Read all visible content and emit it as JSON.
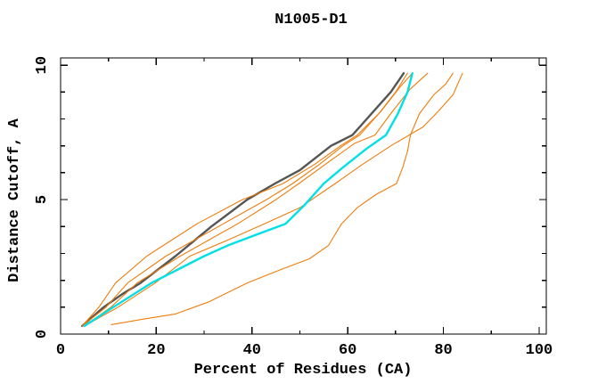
{
  "page": {
    "background": "#ffffff",
    "frame_color": "#000000",
    "text_color": "#000000"
  },
  "chart_data": {
    "type": "line",
    "title": "N1005-D1",
    "xlabel": "Percent of Residues (CA)",
    "ylabel": "Distance Cutoff, A",
    "xlim": [
      0,
      101.5
    ],
    "ylim": [
      0,
      10.27
    ],
    "x_major_ticks": [
      0,
      20,
      40,
      60,
      80,
      100
    ],
    "x_minor_ticks": [
      10,
      30,
      50,
      70,
      90
    ],
    "y_major_ticks": [
      0,
      5,
      10
    ],
    "y_minor_ticks": [
      1,
      2,
      3,
      4,
      6,
      7,
      8,
      9
    ],
    "grid": false,
    "legend": "none",
    "tick_style": "inward-mirrored-all-sides",
    "series": [
      {
        "name": "dark-gray-thick",
        "color": "#555555",
        "width": 2.4,
        "points": [
          [
            4.5,
            0.3
          ],
          [
            9,
            1.0
          ],
          [
            13,
            1.5
          ],
          [
            16.7,
            1.9
          ],
          [
            24,
            2.9
          ],
          [
            31.5,
            4.0
          ],
          [
            39,
            5.0
          ],
          [
            44.8,
            5.6
          ],
          [
            50,
            6.1
          ],
          [
            56.5,
            7.0
          ],
          [
            61,
            7.4
          ],
          [
            64,
            8.0
          ],
          [
            69,
            9.0
          ],
          [
            71.7,
            9.7
          ]
        ]
      },
      {
        "name": "orange-1",
        "color": "#EE7D0C",
        "width": 1.1,
        "points": [
          [
            4.5,
            0.3
          ],
          [
            8,
            1.0
          ],
          [
            11.5,
            1.9
          ],
          [
            18,
            2.9
          ],
          [
            28.5,
            4.1
          ],
          [
            38,
            5.0
          ],
          [
            46.5,
            5.6
          ],
          [
            53,
            6.3
          ],
          [
            58.5,
            7.0
          ],
          [
            62,
            7.4
          ],
          [
            66.5,
            8.2
          ],
          [
            70,
            9.0
          ],
          [
            72.5,
            9.7
          ]
        ]
      },
      {
        "name": "orange-2",
        "color": "#EE7D0C",
        "width": 1.1,
        "points": [
          [
            4.5,
            0.3
          ],
          [
            9.5,
            1.0
          ],
          [
            14,
            1.9
          ],
          [
            22,
            2.9
          ],
          [
            34,
            4.1
          ],
          [
            43,
            5.0
          ],
          [
            48.5,
            5.6
          ],
          [
            54,
            6.3
          ],
          [
            59,
            7.0
          ],
          [
            62.5,
            7.4
          ],
          [
            67,
            8.3
          ],
          [
            71,
            9.2
          ],
          [
            73.5,
            9.7
          ]
        ]
      },
      {
        "name": "orange-3",
        "color": "#EE7D0C",
        "width": 1.1,
        "points": [
          [
            5,
            0.3
          ],
          [
            10.5,
            1.0
          ],
          [
            16,
            1.9
          ],
          [
            25,
            2.9
          ],
          [
            37,
            4.1
          ],
          [
            45,
            5.0
          ],
          [
            49.8,
            5.6
          ],
          [
            56,
            6.4
          ],
          [
            61.5,
            7.1
          ],
          [
            65.7,
            7.4
          ],
          [
            69,
            8.2
          ],
          [
            73,
            9.1
          ],
          [
            76.7,
            9.7
          ]
        ]
      },
      {
        "name": "orange-4",
        "color": "#EE7D0C",
        "width": 1.1,
        "points": [
          [
            5,
            0.3
          ],
          [
            12,
            1.0
          ],
          [
            19.8,
            1.9
          ],
          [
            27,
            2.9
          ],
          [
            35,
            3.5
          ],
          [
            42.6,
            4.1
          ],
          [
            50,
            4.7
          ],
          [
            57.4,
            5.6
          ],
          [
            63,
            6.3
          ],
          [
            69,
            7.0
          ],
          [
            75.7,
            7.7
          ],
          [
            79,
            8.3
          ],
          [
            82,
            8.9
          ],
          [
            84,
            9.7
          ]
        ]
      },
      {
        "name": "orange-5-outlier",
        "color": "#EE7D0C",
        "width": 1.1,
        "points": [
          [
            10.6,
            0.35
          ],
          [
            17,
            0.55
          ],
          [
            24,
            0.75
          ],
          [
            31,
            1.2
          ],
          [
            39,
            1.9
          ],
          [
            46,
            2.4
          ],
          [
            52,
            2.8
          ],
          [
            56,
            3.3
          ],
          [
            58.7,
            4.1
          ],
          [
            62,
            4.7
          ],
          [
            66,
            5.2
          ],
          [
            70.2,
            5.6
          ],
          [
            71.5,
            6.2
          ],
          [
            72.5,
            6.8
          ],
          [
            73.1,
            7.4
          ],
          [
            75,
            8.2
          ],
          [
            78,
            8.9
          ],
          [
            80.5,
            9.3
          ],
          [
            82,
            9.7
          ]
        ]
      },
      {
        "name": "cyan-thick",
        "color": "#00E0E6",
        "width": 2.4,
        "points": [
          [
            5,
            0.3
          ],
          [
            11,
            1.0
          ],
          [
            19,
            1.9
          ],
          [
            30,
            2.9
          ],
          [
            35,
            3.3
          ],
          [
            41,
            3.7
          ],
          [
            47,
            4.1
          ],
          [
            51,
            4.8
          ],
          [
            55,
            5.6
          ],
          [
            59,
            6.2
          ],
          [
            64,
            6.9
          ],
          [
            68,
            7.4
          ],
          [
            70.5,
            8.2
          ],
          [
            72.5,
            9.0
          ],
          [
            73.5,
            9.7
          ]
        ]
      }
    ]
  }
}
